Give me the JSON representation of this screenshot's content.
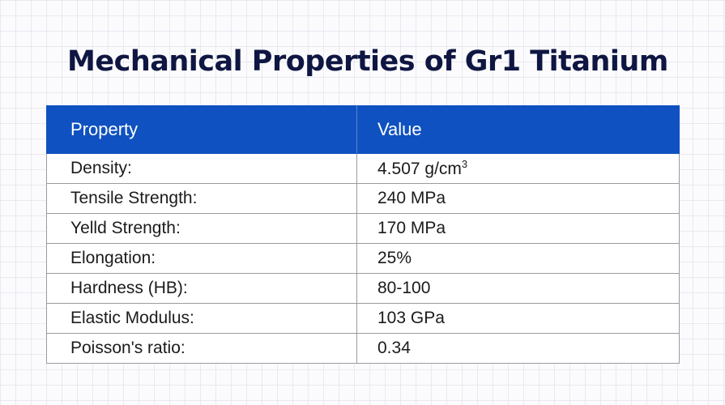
{
  "title": "Mechanical Properties of Gr1 Titanium",
  "table": {
    "headers": [
      "Property",
      "Value"
    ],
    "rows": [
      {
        "property": "Density:",
        "value": "4.507 g/cm",
        "value_sup": "3"
      },
      {
        "property": "Tensile Strength:",
        "value": "240 MPa"
      },
      {
        "property": "Yelld Strength:",
        "value": "170 MPa"
      },
      {
        "property": "Elongation:",
        "value": "25%"
      },
      {
        "property": "Hardness (HB):",
        "value": "80-100"
      },
      {
        "property": "Elastic Modulus:",
        "value": "103 GPa"
      },
      {
        "property": "Poisson's ratio:",
        "value": "0.34"
      }
    ]
  },
  "colors": {
    "header_bg": "#0f51c0",
    "title_color": "#0f1642",
    "border": "#9a9aa0"
  }
}
